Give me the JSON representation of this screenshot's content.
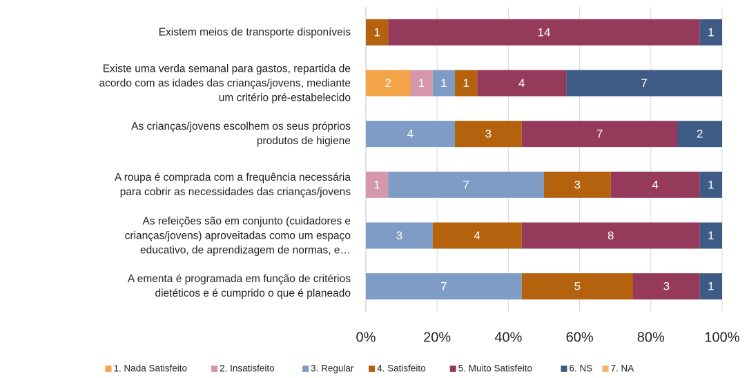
{
  "chart_data": {
    "type": "stacked_bar_100",
    "categories": [
      "Existem meios de transporte disponíveis",
      "Existe uma verda semanal para gastos, repartida de\nacordo com as idades das crianças/jovens, mediante\num critério pré-estabelecido",
      "As crianças/jovens escolhem os seus próprios\nprodutos de higiene",
      "A roupa é comprada com a frequência necessária\npara cobrir as necessidades das crianças/jovens",
      "As refeições são em conjunto (cuidadores e\ncrianças/jovens) aproveitadas como um espaço\neducativo, de aprendizagem de normas, e…",
      "A ementa é programada em função de critérios\ndietéticos e é cumprido o que é planeado"
    ],
    "series": [
      {
        "name": "1. Nada Satisfeito",
        "color": "#f4a54a",
        "values": [
          null,
          2,
          null,
          null,
          null,
          null
        ]
      },
      {
        "name": "2. Insatisfeito",
        "color": "#d497ab",
        "values": [
          null,
          1,
          null,
          1,
          null,
          null
        ]
      },
      {
        "name": "3. Regular",
        "color": "#7f9cc6",
        "values": [
          null,
          1,
          4,
          7,
          3,
          7
        ]
      },
      {
        "name": "4. Satisfeito",
        "color": "#b5620f",
        "values": [
          1,
          1,
          3,
          3,
          4,
          5
        ]
      },
      {
        "name": "5. Muito Satisfeito",
        "color": "#963a5c",
        "values": [
          14,
          4,
          7,
          4,
          8,
          3
        ]
      },
      {
        "name": "6. NS",
        "color": "#3e5b85",
        "values": [
          1,
          7,
          2,
          1,
          1,
          1
        ]
      },
      {
        "name": "7. NA",
        "color": "#f7b26c",
        "values": [
          null,
          null,
          null,
          null,
          null,
          null
        ]
      }
    ],
    "xlim": [
      0,
      100
    ],
    "xticks": [
      {
        "value": 0,
        "label": "0%"
      },
      {
        "value": 20,
        "label": "20%"
      },
      {
        "value": 40,
        "label": "40%"
      },
      {
        "value": 60,
        "label": "60%"
      },
      {
        "value": 80,
        "label": "80%"
      },
      {
        "value": 100,
        "label": "100%"
      }
    ],
    "grid": true,
    "legend": "bottom"
  }
}
